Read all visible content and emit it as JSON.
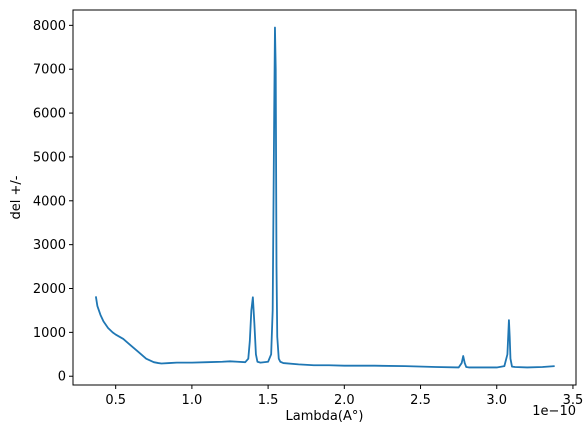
{
  "chart_data": {
    "type": "line",
    "xlabel": "Lambda(A°)",
    "ylabel": "del +/-",
    "x_offset_label": "1e−10",
    "xlim": [
      2.2e-11,
      3.52e-10
    ],
    "ylim": [
      -200,
      8350
    ],
    "x_ticks": [
      5e-11,
      1e-10,
      1.5e-10,
      2e-10,
      2.5e-10,
      3e-10,
      3.5e-10
    ],
    "x_tick_labels": [
      "0.5",
      "1.0",
      "1.5",
      "2.0",
      "2.5",
      "3.0",
      "3.5"
    ],
    "y_ticks": [
      0,
      1000,
      2000,
      3000,
      4000,
      5000,
      6000,
      7000,
      8000
    ],
    "y_tick_labels": [
      "0",
      "1000",
      "2000",
      "3000",
      "4000",
      "5000",
      "6000",
      "7000",
      "8000"
    ],
    "grid": false,
    "line_color": "#1f77b4",
    "series": [
      {
        "x": [
          3.7e-11,
          3.8e-11,
          4e-11,
          4.2e-11,
          4.5e-11,
          4.8e-11,
          5e-11,
          5.5e-11,
          6e-11,
          6.5e-11,
          7e-11,
          7.5e-11,
          7.8e-11,
          8e-11,
          8.5e-11,
          9e-11,
          1e-10,
          1.1e-10,
          1.2e-10,
          1.25e-10,
          1.3e-10,
          1.35e-10,
          1.37e-10,
          1.38e-10,
          1.39e-10,
          1.4e-10,
          1.41e-10,
          1.42e-10,
          1.43e-10,
          1.45e-10,
          1.5e-10,
          1.52e-10,
          1.53e-10,
          1.54e-10,
          1.545e-10,
          1.55e-10,
          1.555e-10,
          1.56e-10,
          1.57e-10,
          1.58e-10,
          1.6e-10,
          1.7e-10,
          1.8e-10,
          1.9e-10,
          2e-10,
          2.2e-10,
          2.4e-10,
          2.6e-10,
          2.75e-10,
          2.77e-10,
          2.78e-10,
          2.79e-10,
          2.8e-10,
          2.82e-10,
          2.9e-10,
          3e-10,
          3.05e-10,
          3.07e-10,
          3.08e-10,
          3.085e-10,
          3.09e-10,
          3.1e-10,
          3.12e-10,
          3.2e-10,
          3.3e-10,
          3.38e-10
        ],
        "y": [
          1820,
          1600,
          1400,
          1250,
          1100,
          1000,
          950,
          850,
          700,
          550,
          400,
          320,
          300,
          290,
          300,
          310,
          310,
          320,
          330,
          340,
          330,
          320,
          400,
          800,
          1500,
          1800,
          1200,
          500,
          330,
          310,
          330,
          500,
          1500,
          6000,
          7950,
          7000,
          2500,
          900,
          400,
          330,
          300,
          270,
          250,
          250,
          240,
          240,
          230,
          210,
          200,
          300,
          460,
          300,
          210,
          200,
          200,
          200,
          230,
          500,
          1280,
          900,
          400,
          220,
          210,
          200,
          210,
          230
        ]
      }
    ]
  }
}
